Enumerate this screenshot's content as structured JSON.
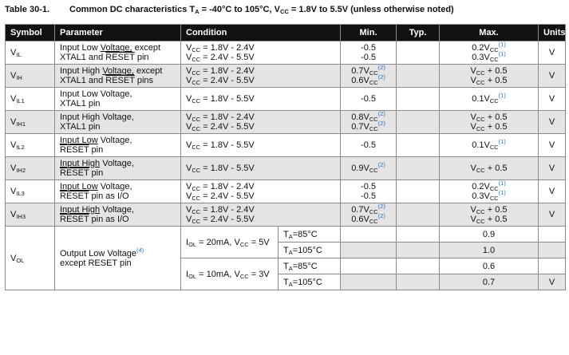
{
  "caption": {
    "number": "Table 30-1.",
    "text_a": "Common DC characteristics T",
    "text_a_sub": "A",
    "text_b": " = -40°C to 105°C, V",
    "text_b_sub": "CC",
    "text_c": " = 1.8V to 5.5V (unless otherwise noted)"
  },
  "headers": {
    "symbol": "Symbol",
    "parameter": "Parameter",
    "condition": "Condition",
    "min": "Min.",
    "typ": "Typ.",
    "max": "Max.",
    "units": "Units"
  },
  "rows": [
    {
      "sym": "V",
      "sym_sub": "IL",
      "p1a": "Input Low ",
      "p1u": "Voltage,",
      "p1b": " except",
      "p2a": "XTAL1 and ",
      "p2o": "RESET",
      "p2b": " pin",
      "c1": "1.8V - 2.4V",
      "c2": "2.4V - 5.5V",
      "min1": "-0.5",
      "min2": "-0.5",
      "max1a": "0.2V",
      "max1n": "(1)",
      "max2a": "0.3V",
      "max2n": "(1)",
      "unit": "V"
    },
    {
      "sym": "V",
      "sym_sub": "IH",
      "p1a": "Input High ",
      "p1u": "Voltage,",
      "p1b": " except",
      "p2a": "XTAL1 and ",
      "p2o": "RESET",
      "p2b": " pins",
      "c1": "1.8V - 2.4V",
      "c2": "2.4V - 5.5V",
      "min1a": "0.7V",
      "min1n": "(2)",
      "min2a": "0.6V",
      "min2n": "(2)",
      "max1": " + 0.5",
      "max2": " + 0.5",
      "unit": "V"
    },
    {
      "sym": "V",
      "sym_sub": "IL1",
      "p1": "Input Low Voltage,",
      "p2": "XTAL1 pin",
      "c1": "1.8V - 5.5V",
      "min1": "-0.5",
      "max1a": "0.1V",
      "max1n": "(1)",
      "unit": "V"
    },
    {
      "sym": "V",
      "sym_sub": "IH1",
      "p1": "Input High Voltage,",
      "p2": "XTAL1 pin",
      "c1": "1.8V - 2.4V",
      "c2": "2.4V - 5.5V",
      "min1a": "0.8V",
      "min1n": "(2)",
      "min2a": "0.7V",
      "min2n": "(2)",
      "max1": " + 0.5",
      "max2": " + 0.5",
      "unit": "V"
    },
    {
      "sym": "V",
      "sym_sub": "IL2",
      "p1u": "Input Low",
      "p1b": " Voltage,",
      "p2o": "RESET",
      "p2b": " pin",
      "c1": "1.8V - 5.5V",
      "min1": "-0.5",
      "max1a": "0.1V",
      "max1n": "(1)",
      "unit": "V"
    },
    {
      "sym": "V",
      "sym_sub": "IH2",
      "p1u": "Input High",
      "p1b": " Voltage,",
      "p2o": "RESET",
      "p2b": " pin",
      "c1": "1.8V - 5.5V",
      "min1a": "0.9V",
      "min1n": "(2)",
      "max1": " + 0.5",
      "unit": "V"
    },
    {
      "sym": "V",
      "sym_sub": "IL3",
      "p1u": "Input Low",
      "p1b": " Voltage,",
      "p2o": "RESET",
      "p2b": " pin as I/O",
      "c1": "1.8V - 2.4V",
      "c2": "2.4V - 5.5V",
      "min1": "-0.5",
      "min2": "-0.5",
      "max1a": "0.2V",
      "max1n": "(1)",
      "max2a": "0.3V",
      "max2n": "(1)",
      "unit": "V"
    },
    {
      "sym": "V",
      "sym_sub": "IH3",
      "p1u": "Input High",
      "p1b": " Voltage,",
      "p2o": "RESET",
      "p2b": " pin as I/O",
      "c1": "1.8V - 2.4V",
      "c2": "2.4V - 5.5V",
      "min1a": "0.7V",
      "min1n": "(2)",
      "min2a": "0.6V",
      "min2n": "(2)",
      "max1": " + 0.5",
      "max2": " + 0.5",
      "unit": "V"
    }
  ],
  "vol": {
    "sym": "V",
    "sym_sub": "OL",
    "p1": "Output Low Voltage",
    "p1n": "(4)",
    "p2": "except RESET pin",
    "cond_a": {
      "i": "I",
      "i_sub": "OL",
      "rest": " = 20mA, V",
      "v_sub": "CC",
      "v": " = 5V"
    },
    "cond_b": {
      "i": "I",
      "i_sub": "OL",
      "rest": " = 10mA, V",
      "v_sub": "CC",
      "v": " = 3V"
    },
    "temps": [
      {
        "t": "T",
        "t_sub": "A",
        "v": "=85°C"
      },
      {
        "t": "T",
        "t_sub": "A",
        "v": "=105°C"
      },
      {
        "t": "T",
        "t_sub": "A",
        "v": "=85°C"
      },
      {
        "t": "T",
        "t_sub": "A",
        "v": "=105°C"
      }
    ],
    "max": [
      "0.9",
      "1.0",
      "0.6",
      "0.7"
    ],
    "unit": "V"
  },
  "common": {
    "vcc": "V",
    "vcc_sub": "CC",
    "eq": " = "
  }
}
